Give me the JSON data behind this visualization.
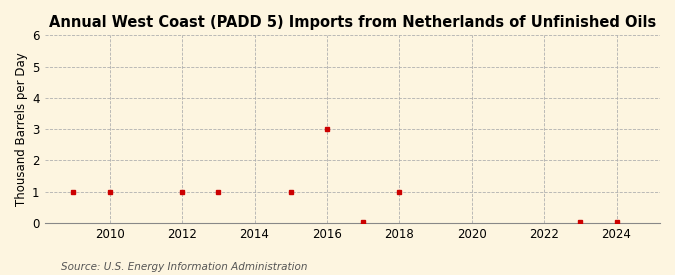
{
  "title": "Annual West Coast (PADD 5) Imports from Netherlands of Unfinished Oils",
  "ylabel": "Thousand Barrels per Day",
  "source_text": "Source: U.S. Energy Information Administration",
  "background_color": "#fdf5e0",
  "plot_bg_color": "#fdf5e0",
  "data_points": [
    {
      "year": 2009,
      "value": 1
    },
    {
      "year": 2010,
      "value": 1
    },
    {
      "year": 2012,
      "value": 1
    },
    {
      "year": 2013,
      "value": 1
    },
    {
      "year": 2015,
      "value": 1
    },
    {
      "year": 2016,
      "value": 3
    },
    {
      "year": 2017,
      "value": 0.04
    },
    {
      "year": 2018,
      "value": 1
    },
    {
      "year": 2023,
      "value": 0.04
    },
    {
      "year": 2024,
      "value": 0.04
    }
  ],
  "marker_color": "#cc0000",
  "marker_style": "s",
  "marker_size": 3.5,
  "xlim": [
    2008.2,
    2025.2
  ],
  "ylim": [
    0,
    6
  ],
  "yticks": [
    0,
    1,
    2,
    3,
    4,
    5,
    6
  ],
  "xticks": [
    2010,
    2012,
    2014,
    2016,
    2018,
    2020,
    2022,
    2024
  ],
  "grid_color": "#b0b0b0",
  "grid_style": "--",
  "grid_linewidth": 0.6,
  "title_fontsize": 10.5,
  "label_fontsize": 8.5,
  "tick_fontsize": 8.5,
  "source_fontsize": 7.5
}
